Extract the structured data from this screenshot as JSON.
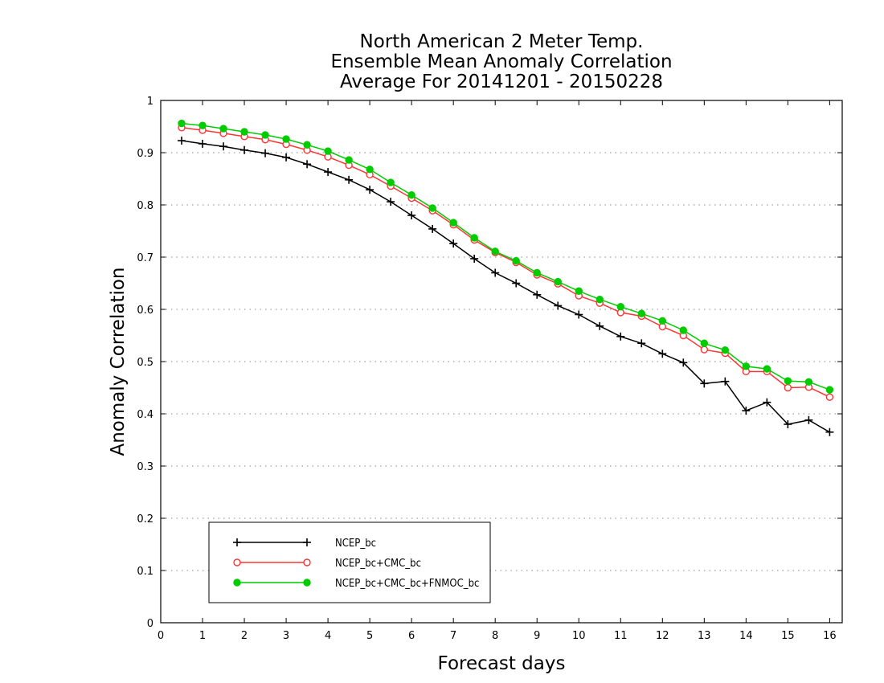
{
  "chart_data": {
    "type": "line",
    "title": [
      "North American 2 Meter Temp.",
      "Ensemble Mean Anomaly Correlation",
      "Average For 20141201 - 20150228"
    ],
    "xlabel": "Forecast days",
    "ylabel": "Anomaly Correlation",
    "xlim": [
      0,
      16.3
    ],
    "ylim": [
      0,
      1
    ],
    "xticks": [
      0,
      1,
      2,
      3,
      4,
      5,
      6,
      7,
      8,
      9,
      10,
      11,
      12,
      13,
      14,
      15,
      16
    ],
    "yticks": [
      0,
      0.1,
      0.2,
      0.3,
      0.4,
      0.5,
      0.6,
      0.7,
      0.8,
      0.9,
      1
    ],
    "ytick_labels": [
      "0",
      "0.1",
      "0.2",
      "0.3",
      "0.4",
      "0.5",
      "0.6",
      "0.7",
      "0.8",
      "0.9",
      "1"
    ],
    "grid": "horizontal-dotted",
    "legend_position": "bottom-left",
    "x": [
      0.5,
      1,
      1.5,
      2,
      2.5,
      3,
      3.5,
      4,
      4.5,
      5,
      5.5,
      6,
      6.5,
      7,
      7.5,
      8,
      8.5,
      9,
      9.5,
      10,
      10.5,
      11,
      11.5,
      12,
      12.5,
      13,
      13.5,
      14,
      14.5,
      15,
      15.5,
      16
    ],
    "series": [
      {
        "name": "NCEP_bc",
        "color": "#000000",
        "marker": "plus",
        "values": [
          0.923,
          0.917,
          0.912,
          0.905,
          0.899,
          0.891,
          0.878,
          0.863,
          0.848,
          0.829,
          0.806,
          0.78,
          0.754,
          0.726,
          0.697,
          0.67,
          0.65,
          0.628,
          0.607,
          0.59,
          0.568,
          0.548,
          0.535,
          0.515,
          0.498,
          0.458,
          0.462,
          0.406,
          0.422,
          0.38,
          0.388,
          0.365
        ]
      },
      {
        "name": "NCEP_bc+CMC_bc",
        "color": "#ff3333",
        "marker": "open-circle",
        "values": [
          0.948,
          0.943,
          0.937,
          0.931,
          0.925,
          0.916,
          0.905,
          0.892,
          0.876,
          0.858,
          0.836,
          0.813,
          0.789,
          0.762,
          0.733,
          0.709,
          0.69,
          0.666,
          0.649,
          0.626,
          0.612,
          0.594,
          0.587,
          0.567,
          0.55,
          0.523,
          0.516,
          0.481,
          0.481,
          0.45,
          0.451,
          0.432
        ]
      },
      {
        "name": "NCEP_bc+CMC_bc+FNMOC_bc",
        "color": "#00cc00",
        "marker": "filled-circle",
        "values": [
          0.956,
          0.952,
          0.946,
          0.94,
          0.934,
          0.926,
          0.915,
          0.903,
          0.886,
          0.868,
          0.843,
          0.819,
          0.794,
          0.766,
          0.737,
          0.711,
          0.693,
          0.67,
          0.653,
          0.635,
          0.619,
          0.605,
          0.592,
          0.578,
          0.56,
          0.535,
          0.522,
          0.491,
          0.486,
          0.463,
          0.461,
          0.446
        ]
      }
    ]
  }
}
